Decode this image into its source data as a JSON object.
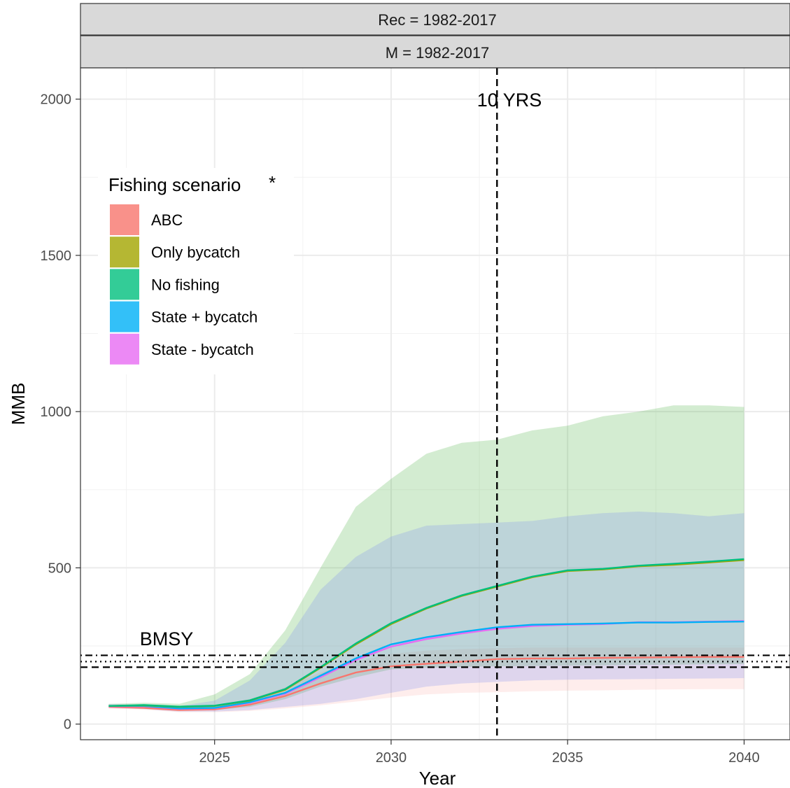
{
  "chart_data": {
    "type": "area",
    "facet_strips": [
      "Rec = 1982-2017",
      "M = 1982-2017"
    ],
    "xlabel": "Year",
    "ylabel": "MMB",
    "xlim": [
      2021.2,
      2041.3
    ],
    "ylim": [
      -50,
      2100
    ],
    "x_ticks": [
      2025,
      2030,
      2035,
      2040
    ],
    "y_ticks": [
      0,
      500,
      1000,
      1500,
      2000
    ],
    "grid": true,
    "legend": {
      "title": "Fishing scenario",
      "marker": "*",
      "placement": "top-left"
    },
    "years": [
      2022,
      2023,
      2024,
      2025,
      2026,
      2027,
      2028,
      2029,
      2030,
      2031,
      2032,
      2033,
      2034,
      2035,
      2036,
      2037,
      2038,
      2039,
      2040
    ],
    "series": [
      {
        "name": "ABC",
        "color": "#F8766D",
        "median": [
          55,
          52,
          45,
          47,
          62,
          90,
          130,
          165,
          185,
          193,
          200,
          208,
          210,
          210,
          212,
          213,
          214,
          215,
          215
        ],
        "lower": [
          50,
          46,
          38,
          38,
          42,
          50,
          60,
          72,
          85,
          95,
          100,
          102,
          105,
          107,
          108,
          110,
          111,
          112,
          112
        ],
        "upper": [
          62,
          60,
          55,
          60,
          80,
          118,
          165,
          200,
          225,
          235,
          240,
          243,
          245,
          245,
          245,
          245,
          245,
          245,
          245
        ]
      },
      {
        "name": "Only bycatch",
        "color": "#A3A500",
        "median": [
          58,
          60,
          55,
          58,
          75,
          110,
          180,
          255,
          320,
          370,
          410,
          440,
          470,
          490,
          495,
          505,
          510,
          517,
          525
        ],
        "lower": [
          52,
          50,
          45,
          45,
          55,
          80,
          120,
          150,
          175,
          180,
          183,
          185,
          186,
          187,
          188,
          189,
          190,
          191,
          192
        ],
        "upper": [
          65,
          68,
          65,
          95,
          160,
          300,
          500,
          695,
          785,
          865,
          900,
          910,
          940,
          955,
          985,
          1000,
          1020,
          1020,
          1015
        ]
      },
      {
        "name": "No fishing",
        "color": "#00BF7D",
        "median": [
          58,
          61,
          56,
          59,
          76,
          112,
          182,
          258,
          323,
          372,
          412,
          442,
          472,
          492,
          497,
          507,
          513,
          520,
          528
        ],
        "lower": [
          52,
          50,
          45,
          45,
          55,
          80,
          120,
          150,
          175,
          180,
          183,
          185,
          186,
          187,
          188,
          189,
          190,
          191,
          192
        ],
        "upper": [
          65,
          68,
          65,
          95,
          160,
          300,
          500,
          695,
          785,
          865,
          900,
          910,
          940,
          955,
          985,
          1000,
          1020,
          1020,
          1015
        ]
      },
      {
        "name": "State + bycatch",
        "color": "#00B0F6",
        "median": [
          58,
          58,
          50,
          52,
          70,
          100,
          155,
          210,
          255,
          278,
          295,
          310,
          318,
          320,
          322,
          325,
          325,
          327,
          328
        ],
        "lower": [
          52,
          48,
          40,
          40,
          45,
          55,
          65,
          80,
          100,
          120,
          130,
          135,
          140,
          142,
          143,
          144,
          145,
          146,
          147
        ],
        "upper": [
          64,
          62,
          58,
          75,
          140,
          260,
          430,
          535,
          600,
          635,
          640,
          645,
          650,
          665,
          675,
          680,
          675,
          665,
          675
        ]
      },
      {
        "name": "State - bycatch",
        "color": "#E76BF3",
        "median": [
          57,
          57,
          49,
          51,
          68,
          97,
          150,
          205,
          248,
          272,
          290,
          305,
          314,
          318,
          320,
          326,
          326,
          328,
          330
        ],
        "lower": [
          52,
          48,
          40,
          40,
          45,
          55,
          65,
          80,
          100,
          120,
          130,
          135,
          140,
          142,
          143,
          144,
          145,
          146,
          147
        ],
        "upper": [
          64,
          62,
          58,
          75,
          140,
          260,
          430,
          535,
          600,
          635,
          640,
          645,
          650,
          665,
          675,
          680,
          675,
          665,
          675
        ]
      }
    ],
    "reference_lines": {
      "vertical": {
        "x": 2033,
        "label": "10 YRS",
        "style": "dashed"
      },
      "horizontal_label": "BMSY",
      "horizontal": [
        {
          "y": 220,
          "style": "dotdash"
        },
        {
          "y": 200,
          "style": "dotted"
        },
        {
          "y": 182,
          "style": "dashed"
        }
      ]
    }
  }
}
